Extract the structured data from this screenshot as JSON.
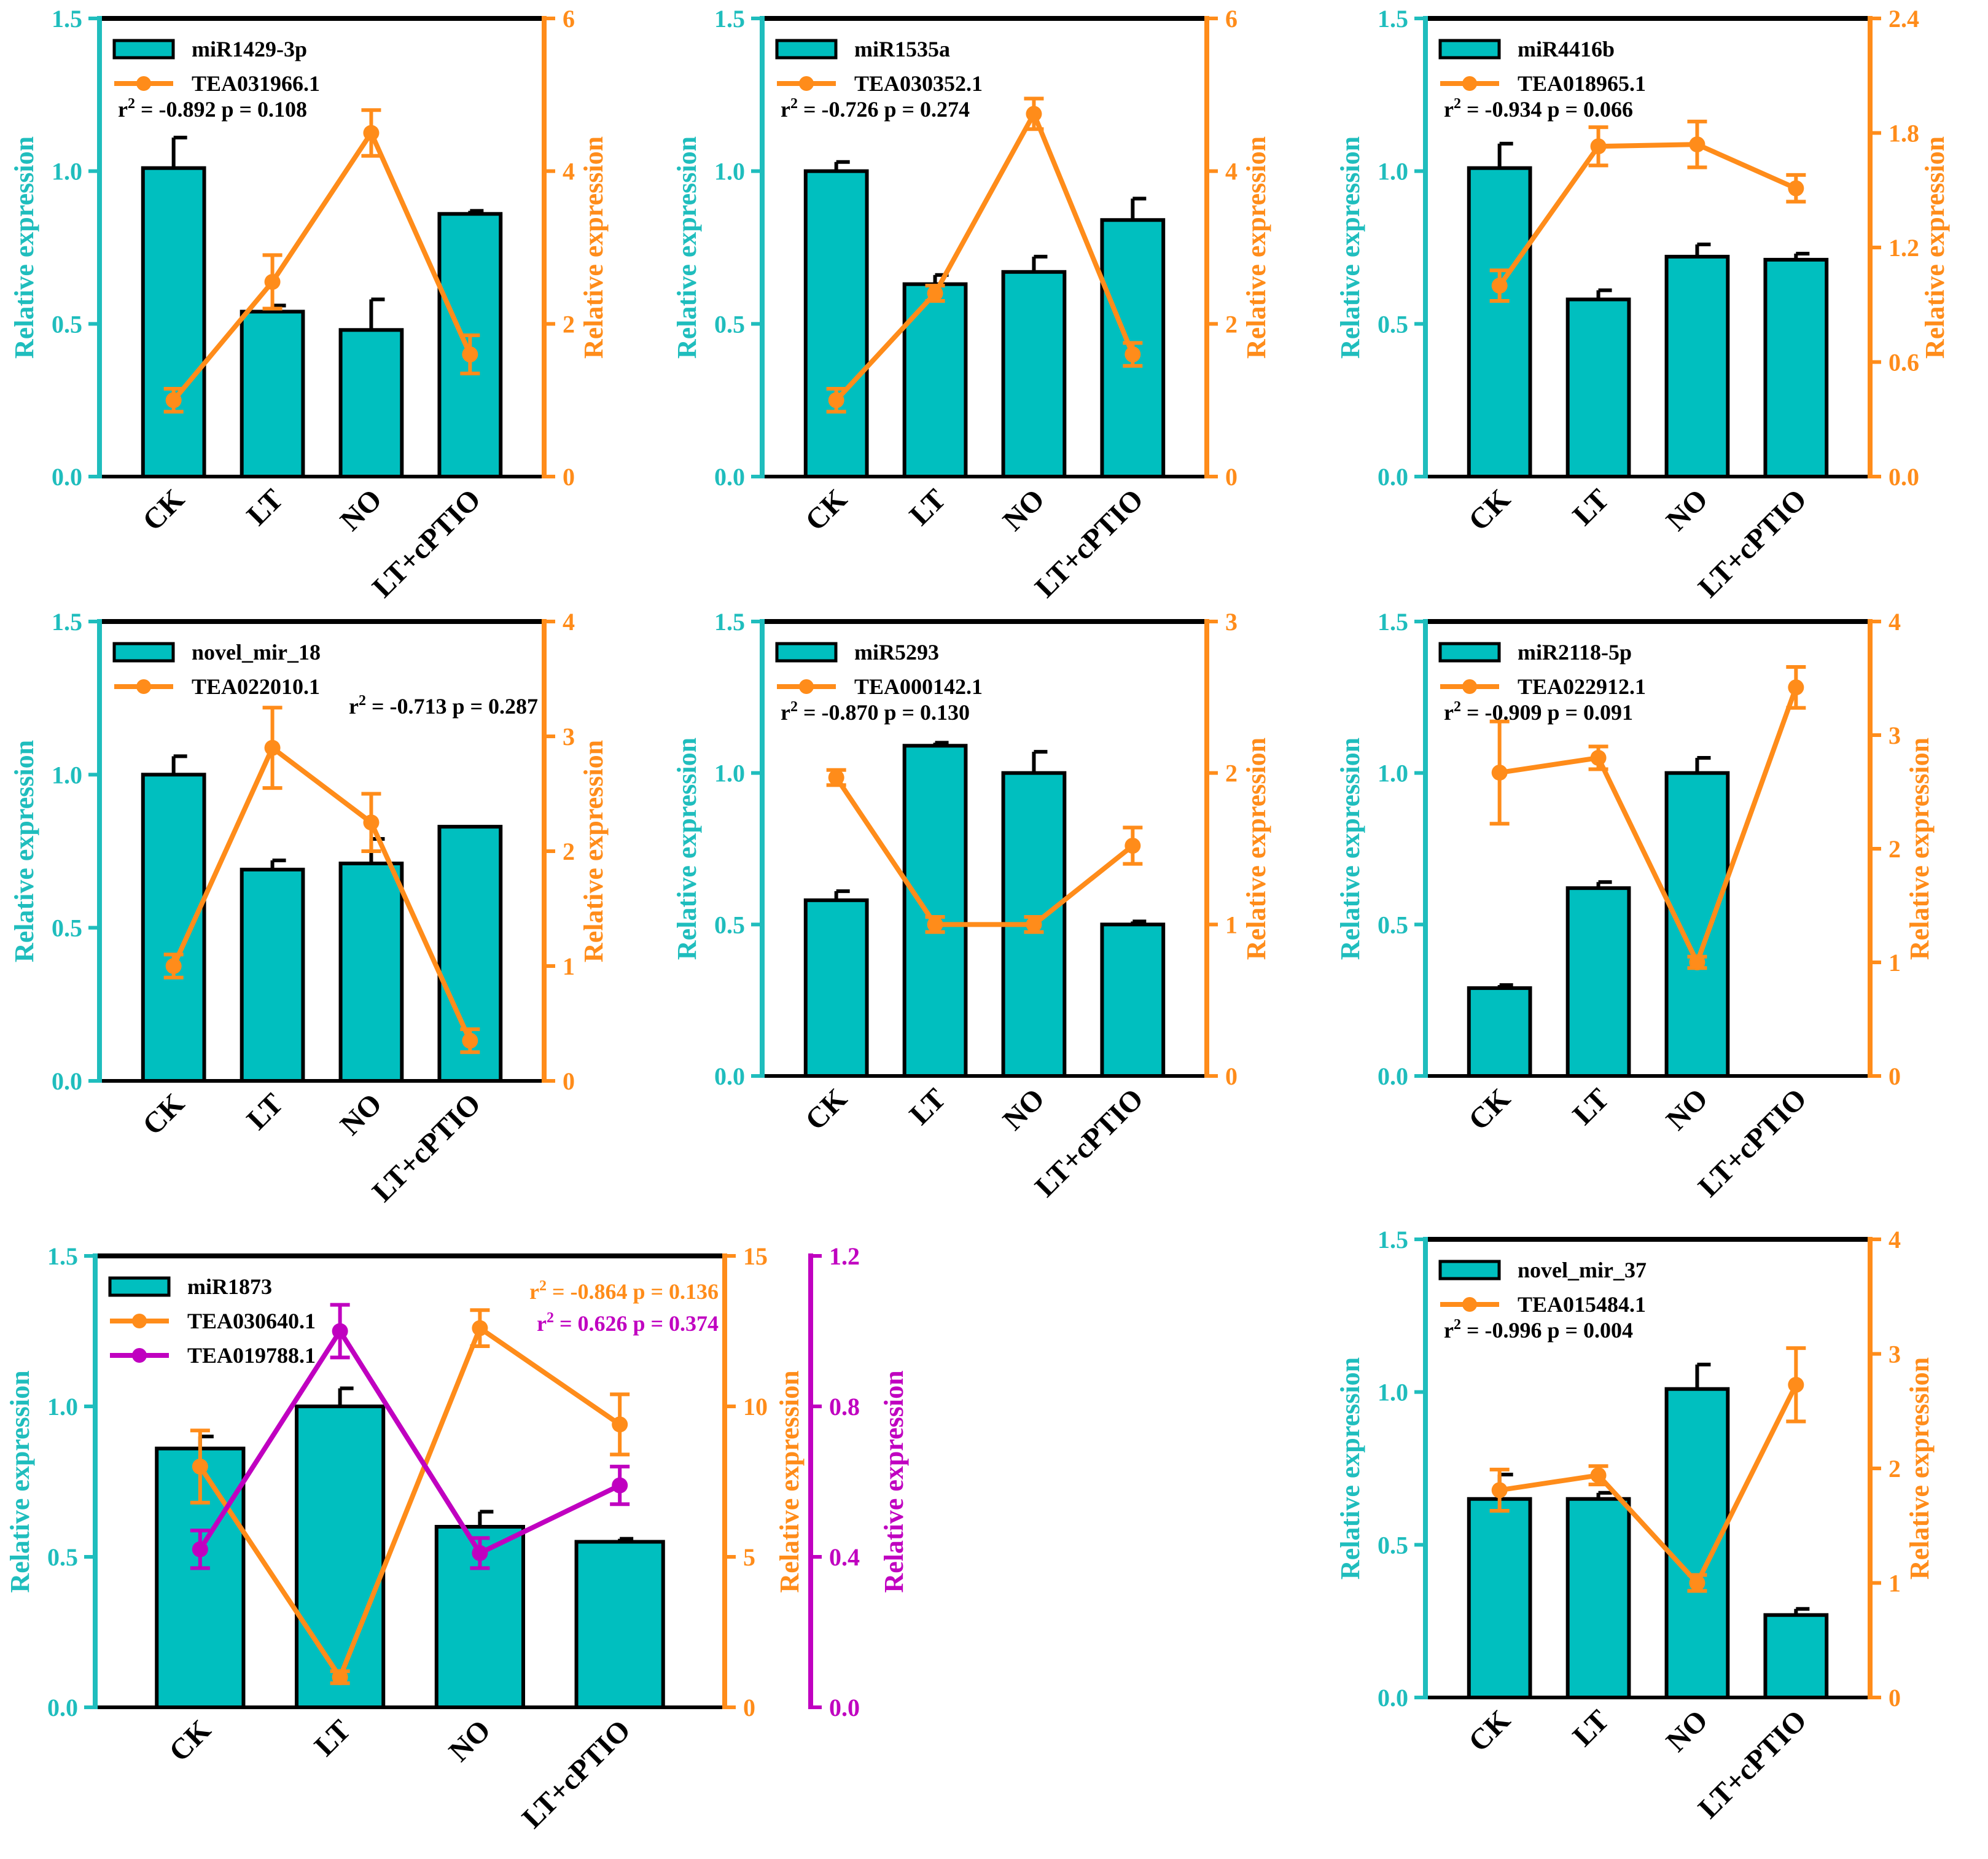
{
  "colors": {
    "bar": "#00bfbf",
    "left_axis": "#1fbdbd",
    "line_orange": "#ff8c1a",
    "line_magenta": "#c000c0",
    "frame": "#000000"
  },
  "chart_data": [
    {
      "type": "bar",
      "title": "",
      "categories": [
        "CK",
        "LT",
        "NO",
        "LT+cPTIO"
      ],
      "ylabel": "Relative expression",
      "y2label": "Relative expression",
      "ylim": [
        0,
        1.5
      ],
      "yticks": [
        "0.0",
        "0.5",
        "1.0",
        "1.5"
      ],
      "y2lim": [
        0,
        6
      ],
      "y2ticks": [
        "0",
        "2",
        "4",
        "6"
      ],
      "series": [
        {
          "name": "miR1429-3p",
          "kind": "bar",
          "values": [
            1.01,
            0.54,
            0.48,
            0.86
          ],
          "errors": [
            0.1,
            0.02,
            0.1,
            0.01
          ]
        },
        {
          "name": "TEA031966.1",
          "kind": "line",
          "axis": "right",
          "values": [
            1.0,
            2.55,
            4.5,
            1.6
          ],
          "errors": [
            0.15,
            0.35,
            0.3,
            0.25
          ]
        }
      ],
      "stat": {
        "r2": "-0.892",
        "p": "0.108",
        "color": "#000000"
      }
    },
    {
      "type": "bar",
      "title": "",
      "categories": [
        "CK",
        "LT",
        "NO",
        "LT+cPTIO"
      ],
      "ylabel": "Relative expression",
      "y2label": "Relative expression",
      "ylim": [
        0,
        1.5
      ],
      "yticks": [
        "0.0",
        "0.5",
        "1.0",
        "1.5"
      ],
      "y2lim": [
        0,
        6
      ],
      "y2ticks": [
        "0",
        "2",
        "4",
        "6"
      ],
      "series": [
        {
          "name": "miR1535a",
          "kind": "bar",
          "values": [
            1.0,
            0.63,
            0.67,
            0.84
          ],
          "errors": [
            0.03,
            0.03,
            0.05,
            0.07
          ]
        },
        {
          "name": "TEA030352.1",
          "kind": "line",
          "axis": "right",
          "values": [
            1.0,
            2.4,
            4.75,
            1.6
          ],
          "errors": [
            0.15,
            0.1,
            0.2,
            0.15
          ]
        }
      ],
      "stat": {
        "r2": "-0.726",
        "p": "0.274",
        "color": "#000000"
      }
    },
    {
      "type": "bar",
      "title": "",
      "categories": [
        "CK",
        "LT",
        "NO",
        "LT+cPTIO"
      ],
      "ylabel": "Relative expression",
      "y2label": "Relative expression",
      "ylim": [
        0,
        1.5
      ],
      "yticks": [
        "0.0",
        "0.5",
        "1.0",
        "1.5"
      ],
      "y2lim": [
        0,
        2.4
      ],
      "y2ticks": [
        "0.0",
        "0.6",
        "1.2",
        "1.8",
        "2.4"
      ],
      "series": [
        {
          "name": "miR4416b",
          "kind": "bar",
          "values": [
            1.01,
            0.58,
            0.72,
            0.71
          ],
          "errors": [
            0.08,
            0.03,
            0.04,
            0.02
          ]
        },
        {
          "name": "TEA018965.1",
          "kind": "line",
          "axis": "right",
          "values": [
            1.0,
            1.73,
            1.74,
            1.51
          ],
          "errors": [
            0.08,
            0.1,
            0.12,
            0.07
          ]
        }
      ],
      "stat": {
        "r2": "-0.934",
        "p": "0.066",
        "color": "#000000"
      }
    },
    {
      "type": "bar",
      "title": "",
      "categories": [
        "CK",
        "LT",
        "NO",
        "LT+cPTIO"
      ],
      "ylabel": "Relative expression",
      "y2label": "Relative expression",
      "ylim": [
        0,
        1.5
      ],
      "yticks": [
        "0.0",
        "0.5",
        "1.0",
        "1.5"
      ],
      "y2lim": [
        0,
        4
      ],
      "y2ticks": [
        "0",
        "1",
        "2",
        "3",
        "4"
      ],
      "series": [
        {
          "name": "novel_mir_18",
          "kind": "bar",
          "values": [
            1.0,
            0.69,
            0.71,
            0.83
          ],
          "errors": [
            0.06,
            0.03,
            0.08,
            0.0
          ]
        },
        {
          "name": "TEA022010.1",
          "kind": "line",
          "axis": "right",
          "values": [
            1.0,
            2.9,
            2.25,
            0.35
          ],
          "errors": [
            0.1,
            0.35,
            0.25,
            0.1
          ]
        }
      ],
      "stat": {
        "r2": "-0.713",
        "p": "0.287",
        "color": "#000000"
      }
    },
    {
      "type": "bar",
      "title": "",
      "categories": [
        "CK",
        "LT",
        "NO",
        "LT+cPTIO"
      ],
      "ylabel": "Relative expression",
      "y2label": "Relative expression",
      "ylim": [
        0,
        1.5
      ],
      "yticks": [
        "0.0",
        "0.5",
        "1.0",
        "1.5"
      ],
      "y2lim": [
        0,
        3
      ],
      "y2ticks": [
        "0",
        "1",
        "2",
        "3"
      ],
      "series": [
        {
          "name": "miR5293",
          "kind": "bar",
          "values": [
            0.58,
            1.09,
            1.0,
            0.5
          ],
          "errors": [
            0.03,
            0.01,
            0.07,
            0.01
          ]
        },
        {
          "name": "TEA000142.1",
          "kind": "line",
          "axis": "right",
          "values": [
            1.97,
            1.0,
            1.0,
            1.52
          ],
          "errors": [
            0.05,
            0.05,
            0.05,
            0.12
          ]
        }
      ],
      "stat": {
        "r2": "-0.870",
        "p": "0.130",
        "color": "#000000"
      }
    },
    {
      "type": "bar",
      "title": "",
      "categories": [
        "CK",
        "LT",
        "NO",
        "LT+cPTIO"
      ],
      "ylabel": "Relative expression",
      "y2label": "Relative expression",
      "ylim": [
        0,
        1.5
      ],
      "yticks": [
        "0.0",
        "0.5",
        "1.0",
        "1.5"
      ],
      "y2lim": [
        0,
        4
      ],
      "y2ticks": [
        "0",
        "1",
        "2",
        "3",
        "4"
      ],
      "series": [
        {
          "name": "miR2118-5p",
          "kind": "bar",
          "values": [
            0.29,
            0.62,
            1.0,
            0.0
          ],
          "errors": [
            0.01,
            0.02,
            0.05,
            0.0
          ]
        },
        {
          "name": "TEA022912.1",
          "kind": "line",
          "axis": "right",
          "values": [
            2.67,
            2.8,
            1.0,
            3.42
          ],
          "errors": [
            0.45,
            0.1,
            0.05,
            0.18
          ]
        }
      ],
      "stat": {
        "r2": "-0.909",
        "p": "0.091",
        "color": "#000000"
      }
    },
    {
      "type": "bar",
      "title": "",
      "categories": [
        "CK",
        "LT",
        "NO",
        "LT+cPTIO"
      ],
      "ylabel": "Relative expression",
      "y2label": "Relative expression",
      "y3label": "Relative expression",
      "ylim": [
        0,
        1.5
      ],
      "yticks": [
        "0.0",
        "0.5",
        "1.0",
        "1.5"
      ],
      "y2lim": [
        0,
        15
      ],
      "y2ticks": [
        "0",
        "5",
        "10",
        "15"
      ],
      "y3lim": [
        0,
        1.2
      ],
      "y3ticks": [
        "0.0",
        "0.4",
        "0.8",
        "1.2"
      ],
      "series": [
        {
          "name": "miR1873",
          "kind": "bar",
          "values": [
            0.86,
            1.0,
            0.6,
            0.55
          ],
          "errors": [
            0.04,
            0.06,
            0.05,
            0.01
          ]
        },
        {
          "name": "TEA030640.1",
          "kind": "line",
          "axis": "right",
          "values": [
            8.0,
            1.0,
            12.6,
            9.4
          ],
          "errors": [
            1.2,
            0.2,
            0.6,
            1.0
          ]
        },
        {
          "name": "TEA019788.1",
          "kind": "line",
          "axis": "right2",
          "values": [
            0.42,
            1.0,
            0.41,
            0.59
          ],
          "errors": [
            0.05,
            0.07,
            0.04,
            0.05
          ]
        }
      ],
      "stats": [
        {
          "r2": "-0.864",
          "p": "0.136",
          "color": "#ff8c1a"
        },
        {
          "r2": "0.626",
          "p": "0.374",
          "color": "#c000c0"
        }
      ]
    },
    {
      "type": "bar",
      "title": "",
      "categories": [
        "CK",
        "LT",
        "NO",
        "LT+cPTIO"
      ],
      "ylabel": "Relative expression",
      "y2label": "Relative expression",
      "ylim": [
        0,
        1.5
      ],
      "yticks": [
        "0.0",
        "0.5",
        "1.0",
        "1.5"
      ],
      "y2lim": [
        0,
        4
      ],
      "y2ticks": [
        "0",
        "1",
        "2",
        "3",
        "4"
      ],
      "series": [
        {
          "name": "novel_mir_37",
          "kind": "bar",
          "values": [
            0.65,
            0.65,
            1.01,
            0.27
          ],
          "errors": [
            0.08,
            0.02,
            0.08,
            0.02
          ]
        },
        {
          "name": "TEA015484.1",
          "kind": "line",
          "axis": "right",
          "values": [
            1.81,
            1.94,
            1.0,
            2.73
          ],
          "errors": [
            0.18,
            0.08,
            0.07,
            0.32
          ]
        }
      ],
      "stat": {
        "r2": "-0.996",
        "p": "0.004",
        "color": "#000000"
      }
    }
  ]
}
